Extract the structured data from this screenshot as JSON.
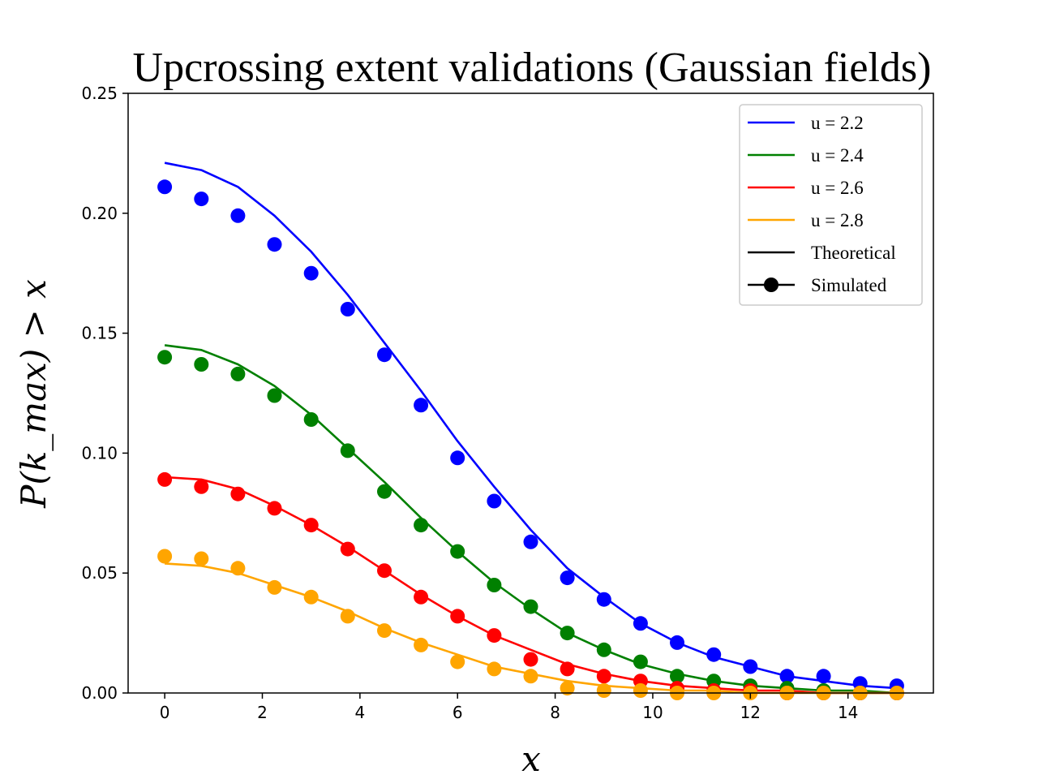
{
  "chart_data": {
    "type": "line",
    "title": "Upcrossing extent validations (Gaussian fields)",
    "xlabel": "x",
    "ylabel": "P(k_max) > x",
    "xlim": [
      -0.75,
      15.75
    ],
    "ylim": [
      0,
      0.25
    ],
    "xticks": [
      0,
      2,
      4,
      6,
      8,
      10,
      12,
      14
    ],
    "yticks": [
      0.0,
      0.05,
      0.1,
      0.15,
      0.2,
      0.25
    ],
    "grid": false,
    "legend_position": "top-right",
    "x": [
      0,
      0.75,
      1.5,
      2.25,
      3.0,
      3.75,
      4.5,
      5.25,
      6.0,
      6.75,
      7.5,
      8.25,
      9.0,
      9.75,
      10.5,
      11.25,
      12.0,
      12.75,
      13.5,
      14.25,
      15.0
    ],
    "series": [
      {
        "name": "u = 2.2",
        "color": "#0000ff",
        "theoretical": [
          0.221,
          0.218,
          0.211,
          0.199,
          0.184,
          0.166,
          0.146,
          0.126,
          0.105,
          0.086,
          0.068,
          0.052,
          0.04,
          0.029,
          0.021,
          0.015,
          0.011,
          0.007,
          0.005,
          0.003,
          0.002
        ],
        "simulated": [
          0.211,
          0.206,
          0.199,
          0.187,
          0.175,
          0.16,
          0.141,
          0.12,
          0.098,
          0.08,
          0.063,
          0.048,
          0.039,
          0.029,
          0.021,
          0.016,
          0.011,
          0.007,
          0.007,
          0.004,
          0.003
        ]
      },
      {
        "name": "u = 2.4",
        "color": "#008000",
        "theoretical": [
          0.145,
          0.143,
          0.137,
          0.128,
          0.116,
          0.102,
          0.088,
          0.073,
          0.059,
          0.046,
          0.035,
          0.025,
          0.018,
          0.012,
          0.008,
          0.005,
          0.003,
          0.002,
          0.001,
          0.001,
          0.0
        ],
        "simulated": [
          0.14,
          0.137,
          0.133,
          0.124,
          0.114,
          0.101,
          0.084,
          0.07,
          0.059,
          0.045,
          0.036,
          0.025,
          0.018,
          0.013,
          0.007,
          0.005,
          0.003,
          0.002,
          0.001,
          0.0,
          0.0
        ]
      },
      {
        "name": "u = 2.6",
        "color": "#ff0000",
        "theoretical": [
          0.09,
          0.089,
          0.085,
          0.078,
          0.07,
          0.061,
          0.051,
          0.041,
          0.032,
          0.024,
          0.018,
          0.012,
          0.008,
          0.005,
          0.003,
          0.002,
          0.001,
          0.001,
          0.0,
          0.0,
          0.0
        ],
        "simulated": [
          0.089,
          0.086,
          0.083,
          0.077,
          0.07,
          0.06,
          0.051,
          0.04,
          0.032,
          0.024,
          0.014,
          0.01,
          0.007,
          0.005,
          0.002,
          0.001,
          0.001,
          0.0,
          0.0,
          0.0,
          0.0
        ]
      },
      {
        "name": "u = 2.8",
        "color": "#ffa500",
        "theoretical": [
          0.054,
          0.053,
          0.05,
          0.045,
          0.04,
          0.034,
          0.027,
          0.021,
          0.016,
          0.011,
          0.008,
          0.005,
          0.003,
          0.002,
          0.001,
          0.001,
          0.0,
          0.0,
          0.0,
          0.0,
          0.0
        ],
        "simulated": [
          0.057,
          0.056,
          0.052,
          0.044,
          0.04,
          0.032,
          0.026,
          0.02,
          0.013,
          0.01,
          0.007,
          0.002,
          0.001,
          0.001,
          0.0,
          0.0,
          0.0,
          0.0,
          0.0,
          0.0,
          0.0
        ]
      }
    ],
    "legend": [
      {
        "label": "u = 2.2",
        "color": "#0000ff",
        "style": "line"
      },
      {
        "label": "u = 2.4",
        "color": "#008000",
        "style": "line"
      },
      {
        "label": "u = 2.6",
        "color": "#ff0000",
        "style": "line"
      },
      {
        "label": "u = 2.8",
        "color": "#ffa500",
        "style": "line"
      },
      {
        "label": "Theoretical",
        "color": "#000000",
        "style": "line"
      },
      {
        "label": "Simulated",
        "color": "#000000",
        "style": "line-marker"
      }
    ]
  }
}
